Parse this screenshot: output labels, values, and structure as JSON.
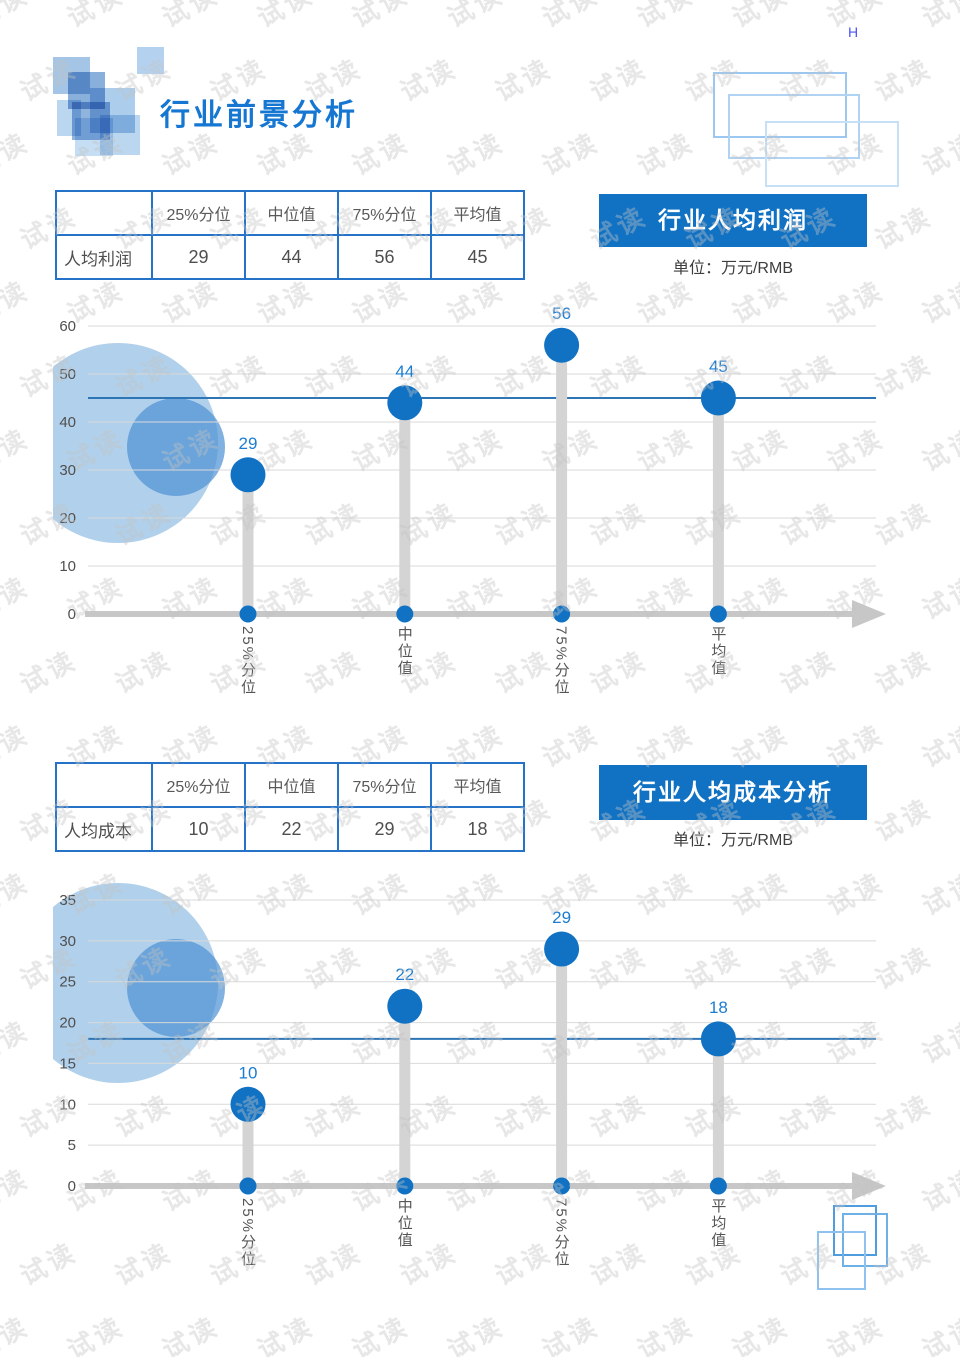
{
  "page": {
    "title": "行业前景分析",
    "corner_mark": "H",
    "watermark": "试读"
  },
  "colors": {
    "accent_blue": "#1172c4",
    "title_blue": "#1677d2",
    "banner_blue": "#1172c4",
    "table_border_blue": "#2473c8",
    "average_line_blue": "#2e75b6",
    "value_label_blue": "#1b7cd2",
    "grid_gray": "#d9d9d9",
    "axis_gray": "#c7c7c7",
    "stem_gray": "#d4d4d4",
    "text_gray": "#555555",
    "bubble_light": "#a9cbe9",
    "bubble_mid": "#4f93d4"
  },
  "sections": [
    {
      "banner": "行业人均利润",
      "unit": "单位：万元/RMB",
      "table": {
        "headers": [
          "",
          "25%分位",
          "中位值",
          "75%分位",
          "平均值"
        ],
        "rows": [
          {
            "label": "人均利润",
            "values": [
              "29",
              "44",
              "56",
              "45"
            ]
          }
        ]
      }
    },
    {
      "banner": "行业人均成本分析",
      "unit": "单位：万元/RMB",
      "table": {
        "headers": [
          "",
          "25%分位",
          "中位值",
          "75%分位",
          "平均值"
        ],
        "rows": [
          {
            "label": "人均成本",
            "values": [
              "10",
              "22",
              "29",
              "18"
            ]
          }
        ]
      }
    }
  ],
  "chart_data": [
    {
      "type": "scatter",
      "variant": "lollipop",
      "title": "行业人均利润",
      "unit": "单位：万元/RMB",
      "categories": [
        "25%分位",
        "中位值",
        "75%分位",
        "平均值"
      ],
      "values": [
        29,
        44,
        56,
        45
      ],
      "average_line": 45,
      "ylim": [
        0,
        60
      ],
      "ytick_step": 10,
      "yticks": [
        0,
        10,
        20,
        30,
        40,
        50,
        60
      ],
      "grid": true,
      "legend": "none",
      "xlabel": "",
      "ylabel": ""
    },
    {
      "type": "scatter",
      "variant": "lollipop",
      "title": "行业人均成本分析",
      "unit": "单位：万元/RMB",
      "categories": [
        "25%分位",
        "中位值",
        "75%分位",
        "平均值"
      ],
      "values": [
        10,
        22,
        29,
        18
      ],
      "average_line": 18,
      "ylim": [
        0,
        35
      ],
      "ytick_step": 5,
      "yticks": [
        0,
        5,
        10,
        15,
        20,
        25,
        30,
        35
      ],
      "grid": true,
      "legend": "none",
      "xlabel": "",
      "ylabel": ""
    }
  ]
}
